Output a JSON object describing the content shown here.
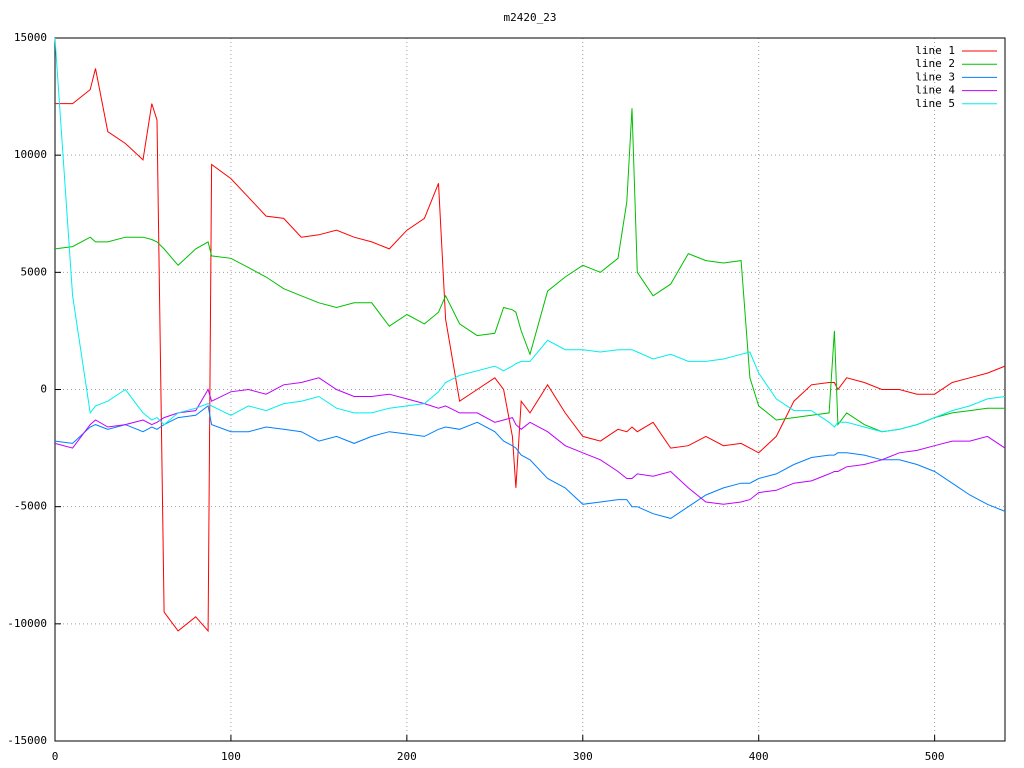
{
  "chart_data": {
    "type": "line",
    "title": "m2420_23",
    "x": [
      0,
      10,
      20,
      23,
      30,
      40,
      50,
      55,
      58,
      62,
      70,
      80,
      87,
      89,
      100,
      110,
      120,
      130,
      140,
      150,
      160,
      170,
      180,
      190,
      200,
      210,
      218,
      222,
      230,
      240,
      250,
      255,
      260,
      262,
      265,
      270,
      280,
      290,
      300,
      310,
      320,
      325,
      328,
      331,
      340,
      350,
      360,
      370,
      380,
      390,
      395,
      400,
      410,
      420,
      430,
      440,
      443,
      445,
      450,
      460,
      470,
      480,
      490,
      500,
      510,
      520,
      530,
      540
    ],
    "series": [
      {
        "name": "line 1",
        "color": "#ff0000",
        "values": [
          12200,
          12200,
          12800,
          13700,
          11000,
          10500,
          9800,
          12200,
          11500,
          -9500,
          -10300,
          -9700,
          -10300,
          9600,
          9000,
          8200,
          7400,
          7300,
          6500,
          6600,
          6800,
          6500,
          6300,
          6000,
          6800,
          7300,
          8800,
          3000,
          -500,
          0,
          500,
          0,
          -2000,
          -4200,
          -500,
          -1000,
          200,
          -1000,
          -2000,
          -2200,
          -1700,
          -1800,
          -1600,
          -1800,
          -1400,
          -2500,
          -2400,
          -2000,
          -2400,
          -2300,
          -2500,
          -2700,
          -2000,
          -500,
          200,
          300,
          300,
          0,
          500,
          300,
          0,
          0,
          -200,
          -200,
          300,
          500,
          700,
          1000
        ]
      },
      {
        "name": "line 2",
        "color": "#00c000",
        "values": [
          6000,
          6100,
          6500,
          6300,
          6300,
          6500,
          6500,
          6400,
          6300,
          6000,
          5300,
          6000,
          6300,
          5700,
          5600,
          5200,
          4800,
          4300,
          4000,
          3700,
          3500,
          3700,
          3700,
          2700,
          3200,
          2800,
          3300,
          4000,
          2800,
          2300,
          2400,
          3500,
          3400,
          3300,
          2500,
          1500,
          4200,
          4800,
          5300,
          5000,
          5600,
          8000,
          12000,
          5000,
          4000,
          4500,
          5800,
          5500,
          5400,
          5500,
          500,
          -700,
          -1300,
          -1200,
          -1100,
          -1000,
          2500,
          -1500,
          -1000,
          -1500,
          -1800,
          -1700,
          -1500,
          -1200,
          -1000,
          -900,
          -800,
          -800
        ]
      },
      {
        "name": "line 3",
        "color": "#0080ff",
        "values": [
          -2200,
          -2300,
          -1600,
          -1500,
          -1700,
          -1500,
          -1800,
          -1600,
          -1700,
          -1500,
          -1200,
          -1100,
          -700,
          -1500,
          -1800,
          -1800,
          -1600,
          -1700,
          -1800,
          -2200,
          -2000,
          -2300,
          -2000,
          -1800,
          -1900,
          -2000,
          -1700,
          -1600,
          -1700,
          -1400,
          -1800,
          -2200,
          -2400,
          -2500,
          -2800,
          -3000,
          -3800,
          -4200,
          -4900,
          -4800,
          -4700,
          -4700,
          -5000,
          -5000,
          -5300,
          -5500,
          -5000,
          -4500,
          -4200,
          -4000,
          -4000,
          -3800,
          -3600,
          -3200,
          -2900,
          -2800,
          -2800,
          -2700,
          -2700,
          -2800,
          -3000,
          -3000,
          -3200,
          -3500,
          -4000,
          -4500,
          -4900,
          -5200
        ]
      },
      {
        "name": "line 4",
        "color": "#c000ff",
        "values": [
          -2300,
          -2500,
          -1500,
          -1300,
          -1600,
          -1500,
          -1300,
          -1500,
          -1400,
          -1200,
          -1000,
          -900,
          0,
          -500,
          -100,
          0,
          -200,
          200,
          300,
          500,
          0,
          -300,
          -300,
          -200,
          -400,
          -600,
          -800,
          -700,
          -1000,
          -1000,
          -1400,
          -1300,
          -1200,
          -1500,
          -1700,
          -1400,
          -1800,
          -2400,
          -2700,
          -3000,
          -3500,
          -3800,
          -3800,
          -3600,
          -3700,
          -3500,
          -4200,
          -4800,
          -4900,
          -4800,
          -4700,
          -4400,
          -4300,
          -4000,
          -3900,
          -3600,
          -3500,
          -3500,
          -3300,
          -3200,
          -3000,
          -2700,
          -2600,
          -2400,
          -2200,
          -2200,
          -2000,
          -2500
        ]
      },
      {
        "name": "line 5",
        "color": "#00eeee",
        "values": [
          15000,
          4000,
          -1000,
          -700,
          -500,
          0,
          -1000,
          -1300,
          -1200,
          -1500,
          -1000,
          -800,
          -600,
          -700,
          -1100,
          -700,
          -900,
          -600,
          -500,
          -300,
          -800,
          -1000,
          -1000,
          -800,
          -700,
          -600,
          -100,
          300,
          600,
          800,
          1000,
          800,
          1000,
          1100,
          1200,
          1200,
          2100,
          1700,
          1700,
          1600,
          1700,
          1700,
          1700,
          1600,
          1300,
          1500,
          1200,
          1200,
          1300,
          1500,
          1600,
          700,
          -400,
          -900,
          -900,
          -1400,
          -1600,
          -1400,
          -1400,
          -1600,
          -1800,
          -1700,
          -1500,
          -1200,
          -900,
          -700,
          -400,
          -300
        ]
      }
    ],
    "xlim": [
      0,
      540
    ],
    "xticks": [
      0,
      100,
      200,
      300,
      400,
      500
    ],
    "ylim": [
      -15000,
      15000
    ],
    "yticks": [
      -15000,
      -10000,
      -5000,
      0,
      5000,
      10000,
      15000
    ],
    "grid": true,
    "legend": "top-right"
  }
}
